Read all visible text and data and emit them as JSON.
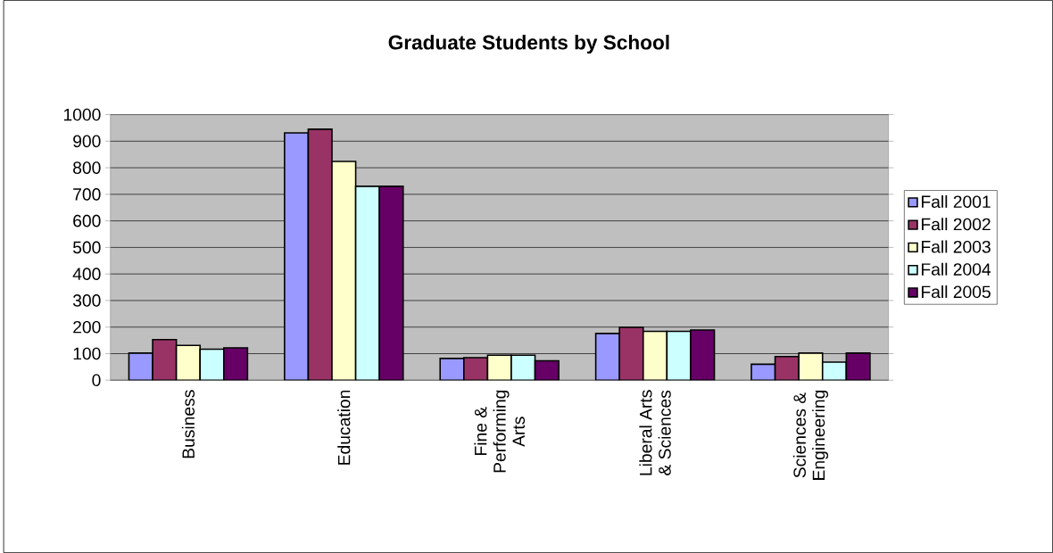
{
  "chart_data": {
    "type": "bar",
    "title": "Graduate Students by School",
    "categories": [
      "Business",
      "Education",
      "Fine & Performing Arts",
      "Liberal Arts & Sciences",
      "Sciences & Engineering"
    ],
    "series": [
      {
        "name": "Fall 2001",
        "color": "#9999ff",
        "values": [
          102,
          931,
          82,
          176,
          60
        ]
      },
      {
        "name": "Fall 2002",
        "color": "#993366",
        "values": [
          153,
          945,
          85,
          199,
          89
        ]
      },
      {
        "name": "Fall 2003",
        "color": "#ffffcc",
        "values": [
          131,
          824,
          94,
          184,
          102
        ]
      },
      {
        "name": "Fall 2004",
        "color": "#ccffff",
        "values": [
          117,
          730,
          94,
          184,
          68
        ]
      },
      {
        "name": "Fall 2005",
        "color": "#660066",
        "values": [
          122,
          730,
          73,
          189,
          102
        ]
      }
    ],
    "ylim": [
      0,
      1000
    ],
    "yticks": [
      0,
      100,
      200,
      300,
      400,
      500,
      600,
      700,
      800,
      900,
      1000
    ],
    "grid": "y",
    "legend": "right"
  }
}
